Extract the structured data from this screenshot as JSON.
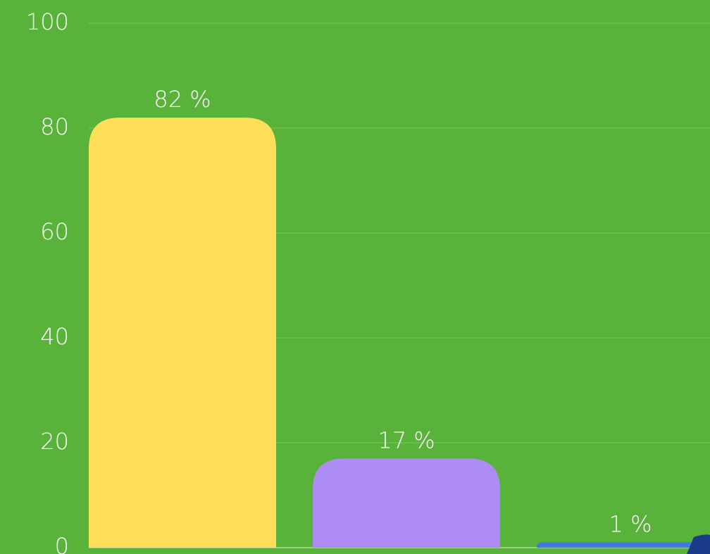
{
  "chart_data": {
    "type": "bar",
    "categories": [
      null,
      null,
      null
    ],
    "values": [
      82,
      17,
      1
    ],
    "value_labels": [
      "82 %",
      "17 %",
      "1 %"
    ],
    "colors": [
      "#ffdf5a",
      "#ad8cf5",
      "#3d7be0"
    ],
    "ylim": [
      0,
      100
    ],
    "yticks": [
      0,
      20,
      40,
      60,
      80,
      100
    ],
    "grid": true
  }
}
